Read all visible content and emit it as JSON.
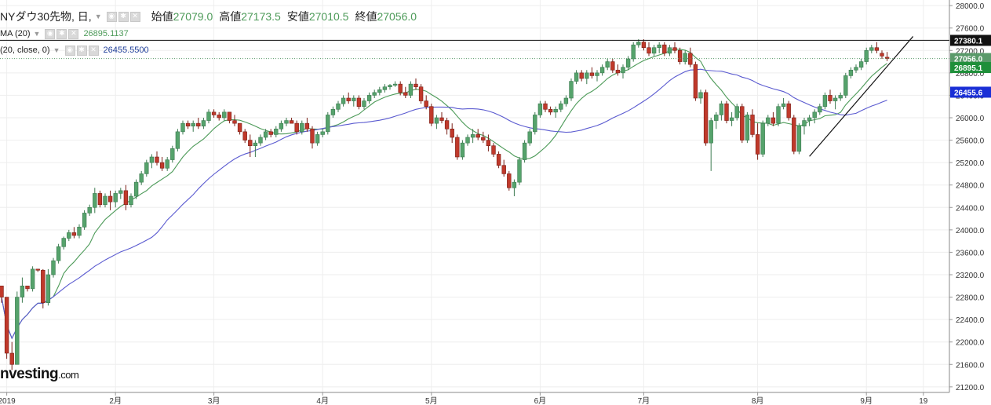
{
  "header": {
    "title": "NYダウ30先物, 日,",
    "open_label": "始値",
    "open_value": "27079.0",
    "high_label": "高値",
    "high_value": "27173.5",
    "low_label": "安値",
    "low_value": "27010.5",
    "close_label": "終値",
    "close_value": "27056.0"
  },
  "indicators": [
    {
      "label": "MA (20)",
      "value": "26895.1137",
      "color": "#4c9a58"
    },
    {
      "label": "(20, close, 0)",
      "value": "26455.5500",
      "color": "#3a3ab0"
    }
  ],
  "logo": {
    "text": "nvesting",
    "suffix": ".com"
  },
  "chart_data": {
    "type": "candlestick",
    "y_axis_ticks": [
      "28000.0",
      "27600.0",
      "27200.0",
      "26800.0",
      "26400.0",
      "26000.0",
      "25600.0",
      "25200.0",
      "24800.0",
      "24400.0",
      "24000.0",
      "23600.0",
      "23200.0",
      "22800.0",
      "22400.0",
      "22000.0",
      "21600.0",
      "21200.0"
    ],
    "ylim": [
      21100,
      28100
    ],
    "x_axis_ticks": [
      {
        "label": "2019",
        "session": 1
      },
      {
        "label": "2月",
        "session": 22
      },
      {
        "label": "3月",
        "session": 41
      },
      {
        "label": "4月",
        "session": 62
      },
      {
        "label": "5月",
        "session": 83
      },
      {
        "label": "6月",
        "session": 104
      },
      {
        "label": "7月",
        "session": 124
      },
      {
        "label": "8月",
        "session": 146
      },
      {
        "label": "9月",
        "session": 167
      },
      {
        "label": "19",
        "session": 178
      }
    ],
    "price_labels": [
      {
        "text": "27380.1",
        "value": 27380.1,
        "bg": "#111111",
        "fg": "#ffffff"
      },
      {
        "text": "27056.0",
        "value": 27056.0,
        "bg": "#5a9a6a",
        "fg": "#ffffff"
      },
      {
        "text": "26895.1",
        "value": 26895.1,
        "bg": "#1f8f3a",
        "fg": "#ffffff"
      },
      {
        "text": "26455.6",
        "value": 26455.6,
        "bg": "#1a2fd6",
        "fg": "#ffffff"
      }
    ],
    "horizontal_line": 27380.1,
    "dotted_line": 27056.0,
    "trendline": {
      "from": {
        "session": 156,
        "value": 25310
      },
      "to": {
        "session": 176,
        "value": 27450
      }
    },
    "colors": {
      "up": "#56a36c",
      "down": "#c0392b",
      "ma_fast": "#4c9a58",
      "ma_slow": "#5a5ad0",
      "grid": "#eeeeee"
    },
    "ohlc": [
      [
        23000,
        23000,
        22700,
        22800
      ],
      [
        22800,
        22800,
        21700,
        21800
      ],
      [
        21800,
        22000,
        21500,
        21600
      ],
      [
        21600,
        22900,
        21600,
        22800
      ],
      [
        22800,
        23150,
        22700,
        23000
      ],
      [
        23000,
        23000,
        22900,
        22950
      ],
      [
        22950,
        23350,
        22900,
        23300
      ],
      [
        23300,
        23300,
        23250,
        23280
      ],
      [
        23280,
        23300,
        22600,
        22700
      ],
      [
        22700,
        23300,
        22650,
        23200
      ],
      [
        23200,
        23500,
        23150,
        23450
      ],
      [
        23450,
        23750,
        23400,
        23700
      ],
      [
        23700,
        23880,
        23650,
        23850
      ],
      [
        23850,
        24000,
        23800,
        23950
      ],
      [
        23950,
        24050,
        23850,
        23900
      ],
      [
        23900,
        24100,
        23850,
        24050
      ],
      [
        24050,
        24350,
        24000,
        24300
      ],
      [
        24300,
        24450,
        24250,
        24400
      ],
      [
        24400,
        24750,
        24300,
        24650
      ],
      [
        24650,
        24700,
        24400,
        24450
      ],
      [
        24450,
        24650,
        24400,
        24600
      ],
      [
        24600,
        24700,
        24350,
        24500
      ],
      [
        24500,
        24700,
        24400,
        24650
      ],
      [
        24650,
        24750,
        24550,
        24700
      ],
      [
        24700,
        24800,
        24350,
        24450
      ],
      [
        24450,
        24650,
        24400,
        24600
      ],
      [
        24600,
        24900,
        24550,
        24850
      ],
      [
        24850,
        25050,
        24800,
        25000
      ],
      [
        25000,
        25250,
        24950,
        25200
      ],
      [
        25200,
        25350,
        25100,
        25300
      ],
      [
        25300,
        25400,
        25150,
        25200
      ],
      [
        25200,
        25300,
        25050,
        25100
      ],
      [
        25100,
        25300,
        25050,
        25250
      ],
      [
        25250,
        25500,
        25200,
        25450
      ],
      [
        25450,
        25800,
        25400,
        25750
      ],
      [
        25750,
        25950,
        25700,
        25900
      ],
      [
        25900,
        25950,
        25800,
        25850
      ],
      [
        25850,
        25950,
        25750,
        25900
      ],
      [
        25900,
        26000,
        25800,
        25850
      ],
      [
        25850,
        26000,
        25800,
        25950
      ],
      [
        25950,
        26150,
        25900,
        26100
      ],
      [
        26100,
        26150,
        26000,
        26050
      ],
      [
        26050,
        26100,
        25950,
        26000
      ],
      [
        26000,
        26150,
        25950,
        26100
      ],
      [
        26100,
        26100,
        25900,
        25950
      ],
      [
        25950,
        26050,
        25850,
        25900
      ],
      [
        25900,
        25900,
        25700,
        25750
      ],
      [
        25750,
        25800,
        25550,
        25600
      ],
      [
        25600,
        25700,
        25300,
        25500
      ],
      [
        25500,
        25600,
        25300,
        25550
      ],
      [
        25550,
        25700,
        25500,
        25650
      ],
      [
        25650,
        25800,
        25600,
        25750
      ],
      [
        25750,
        25800,
        25650,
        25700
      ],
      [
        25700,
        25850,
        25650,
        25800
      ],
      [
        25800,
        25950,
        25750,
        25900
      ],
      [
        25900,
        26000,
        25850,
        25950
      ],
      [
        25950,
        26000,
        25900,
        25900
      ],
      [
        25900,
        25950,
        25700,
        25750
      ],
      [
        25750,
        25950,
        25700,
        25900
      ],
      [
        25900,
        26000,
        25750,
        25800
      ],
      [
        25800,
        25850,
        25450,
        25550
      ],
      [
        25550,
        25750,
        25500,
        25700
      ],
      [
        25700,
        25800,
        25650,
        25750
      ],
      [
        25750,
        26100,
        25700,
        26050
      ],
      [
        26050,
        26200,
        26000,
        26150
      ],
      [
        26150,
        26300,
        26100,
        26250
      ],
      [
        26250,
        26400,
        26200,
        26350
      ],
      [
        26350,
        26450,
        26250,
        26300
      ],
      [
        26300,
        26400,
        26200,
        26350
      ],
      [
        26350,
        26400,
        26150,
        26200
      ],
      [
        26200,
        26350,
        26150,
        26300
      ],
      [
        26300,
        26450,
        26250,
        26400
      ],
      [
        26400,
        26500,
        26350,
        26450
      ],
      [
        26450,
        26550,
        26400,
        26500
      ],
      [
        26500,
        26600,
        26450,
        26550
      ],
      [
        26550,
        26600,
        26500,
        26580
      ],
      [
        26580,
        26650,
        26550,
        26600
      ],
      [
        26600,
        26650,
        26400,
        26450
      ],
      [
        26450,
        26550,
        26350,
        26400
      ],
      [
        26400,
        26650,
        26350,
        26600
      ],
      [
        26600,
        26700,
        26500,
        26550
      ],
      [
        26550,
        26600,
        26250,
        26300
      ],
      [
        26300,
        26400,
        26150,
        26200
      ],
      [
        26200,
        26250,
        25850,
        25900
      ],
      [
        25900,
        26050,
        25800,
        26000
      ],
      [
        26000,
        26100,
        25900,
        25950
      ],
      [
        25950,
        26000,
        25700,
        25800
      ],
      [
        25800,
        25900,
        25550,
        25650
      ],
      [
        25650,
        25700,
        25250,
        25300
      ],
      [
        25300,
        25600,
        25250,
        25550
      ],
      [
        25550,
        25700,
        25500,
        25650
      ],
      [
        25650,
        25800,
        25550,
        25700
      ],
      [
        25700,
        25800,
        25600,
        25650
      ],
      [
        25650,
        25750,
        25550,
        25600
      ],
      [
        25600,
        25700,
        25400,
        25500
      ],
      [
        25500,
        25550,
        25300,
        25350
      ],
      [
        25350,
        25400,
        25100,
        25150
      ],
      [
        25150,
        25250,
        24950,
        25000
      ],
      [
        25000,
        25050,
        24700,
        24750
      ],
      [
        24750,
        24900,
        24600,
        24850
      ],
      [
        24850,
        25300,
        24800,
        25250
      ],
      [
        25250,
        25600,
        25200,
        25550
      ],
      [
        25550,
        25800,
        25500,
        25750
      ],
      [
        25750,
        26100,
        25700,
        26050
      ],
      [
        26050,
        26300,
        26000,
        26250
      ],
      [
        26250,
        26300,
        26100,
        26150
      ],
      [
        26150,
        26200,
        26050,
        26100
      ],
      [
        26100,
        26200,
        26000,
        26150
      ],
      [
        26150,
        26300,
        26100,
        26250
      ],
      [
        26250,
        26400,
        26200,
        26350
      ],
      [
        26350,
        26700,
        26300,
        26650
      ],
      [
        26650,
        26850,
        26600,
        26800
      ],
      [
        26800,
        26850,
        26650,
        26700
      ],
      [
        26700,
        26850,
        26600,
        26800
      ],
      [
        26800,
        26900,
        26700,
        26750
      ],
      [
        26750,
        26850,
        26650,
        26800
      ],
      [
        26800,
        26950,
        26750,
        26900
      ],
      [
        26900,
        27050,
        26850,
        27000
      ],
      [
        27000,
        27050,
        26800,
        26850
      ],
      [
        26850,
        26950,
        26750,
        26800
      ],
      [
        26800,
        26950,
        26700,
        26900
      ],
      [
        26900,
        27100,
        26850,
        27050
      ],
      [
        27050,
        27350,
        27000,
        27300
      ],
      [
        27300,
        27400,
        27250,
        27350
      ],
      [
        27350,
        27400,
        27200,
        27250
      ],
      [
        27250,
        27350,
        27100,
        27150
      ],
      [
        27150,
        27300,
        27100,
        27250
      ],
      [
        27250,
        27350,
        27150,
        27300
      ],
      [
        27300,
        27350,
        27100,
        27150
      ],
      [
        27150,
        27300,
        27100,
        27250
      ],
      [
        27250,
        27350,
        27150,
        27200
      ],
      [
        27200,
        27250,
        26950,
        27000
      ],
      [
        27000,
        27200,
        26950,
        27150
      ],
      [
        27150,
        27250,
        26900,
        26950
      ],
      [
        26950,
        27000,
        26300,
        26350
      ],
      [
        26350,
        26500,
        26250,
        26450
      ],
      [
        26450,
        26500,
        25500,
        25550
      ],
      [
        25550,
        26000,
        25050,
        25950
      ],
      [
        25950,
        26100,
        25800,
        26050
      ],
      [
        26050,
        26300,
        25950,
        26250
      ],
      [
        26250,
        26300,
        25900,
        25950
      ],
      [
        25950,
        26100,
        25850,
        26000
      ],
      [
        26000,
        26250,
        25950,
        26200
      ],
      [
        26200,
        26250,
        25550,
        25600
      ],
      [
        25600,
        26100,
        25550,
        26050
      ],
      [
        26050,
        26150,
        25650,
        25700
      ],
      [
        25700,
        25900,
        25250,
        25350
      ],
      [
        25350,
        25950,
        25300,
        25900
      ],
      [
        25900,
        26050,
        25850,
        26000
      ],
      [
        26000,
        26100,
        25850,
        25900
      ],
      [
        25900,
        26250,
        25850,
        26200
      ],
      [
        26200,
        26350,
        26150,
        26250
      ],
      [
        26250,
        26300,
        25950,
        26000
      ],
      [
        26000,
        26050,
        25350,
        25400
      ],
      [
        25400,
        25900,
        25350,
        25850
      ],
      [
        25850,
        26000,
        25700,
        25950
      ],
      [
        25950,
        26050,
        25850,
        26000
      ],
      [
        26000,
        26150,
        25900,
        26100
      ],
      [
        26100,
        26250,
        26050,
        26200
      ],
      [
        26200,
        26450,
        26150,
        26400
      ],
      [
        26400,
        26500,
        26250,
        26300
      ],
      [
        26300,
        26400,
        26150,
        26350
      ],
      [
        26350,
        26450,
        26300,
        26400
      ],
      [
        26400,
        26800,
        26350,
        26750
      ],
      [
        26750,
        26900,
        26700,
        26850
      ],
      [
        26850,
        26950,
        26800,
        26900
      ],
      [
        26900,
        27050,
        26850,
        27000
      ],
      [
        27000,
        27250,
        26950,
        27200
      ],
      [
        27200,
        27300,
        27150,
        27250
      ],
      [
        27250,
        27350,
        27150,
        27200
      ],
      [
        27150,
        27200,
        27050,
        27100
      ],
      [
        27079,
        27173.5,
        27010.5,
        27056
      ]
    ]
  }
}
